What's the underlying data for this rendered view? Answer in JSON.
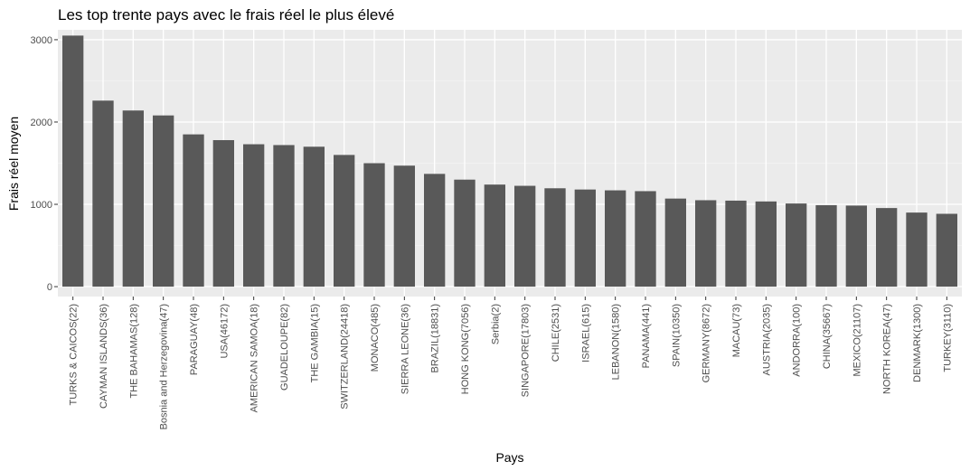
{
  "chart_data": {
    "type": "bar",
    "title": "Les top trente pays avec le frais réel le plus élevé",
    "xlabel": "Pays",
    "ylabel": "Frais réel moyen",
    "ylim": [
      -120,
      3120
    ],
    "yticks": [
      0,
      1000,
      2000,
      3000
    ],
    "grid": true,
    "colors": {
      "bar": "#595959",
      "panel": "#ebebeb",
      "grid_major": "#ffffff",
      "grid_minor": "#f5f5f5"
    },
    "categories": [
      "TURKS & CAICOS(22)",
      "CAYMAN ISLANDS(36)",
      "THE BAHAMAS(128)",
      "Bosnia and Herzegovina(47)",
      "PARAGUAY(48)",
      "USA(46172)",
      "AMERICAN SAMOA(18)",
      "GUADELOUPE(82)",
      "THE GAMBIA(15)",
      "SWITZERLAND(24418)",
      "MONACO(485)",
      "SIERRA LEONE(36)",
      "BRAZIL(18831)",
      "HONG KONG(7056)",
      "Serbia(2)",
      "SINGAPORE(17803)",
      "CHILE(2531)",
      "ISRAEL(615)",
      "LEBANON(1580)",
      "PANAMA(441)",
      "SPAIN(10350)",
      "GERMANY(8672)",
      "MACAU(73)",
      "AUSTRIA(2035)",
      "ANDORRA(100)",
      "CHINA(35667)",
      "MEXICO(21107)",
      "NORTH KOREA(47)",
      "DENMARK(1300)",
      "TURKEY(3110)"
    ],
    "values": [
      3050,
      2260,
      2140,
      2080,
      1850,
      1780,
      1730,
      1720,
      1700,
      1600,
      1500,
      1470,
      1370,
      1300,
      1240,
      1225,
      1195,
      1180,
      1170,
      1160,
      1070,
      1050,
      1045,
      1035,
      1010,
      990,
      985,
      955,
      900,
      885
    ]
  }
}
